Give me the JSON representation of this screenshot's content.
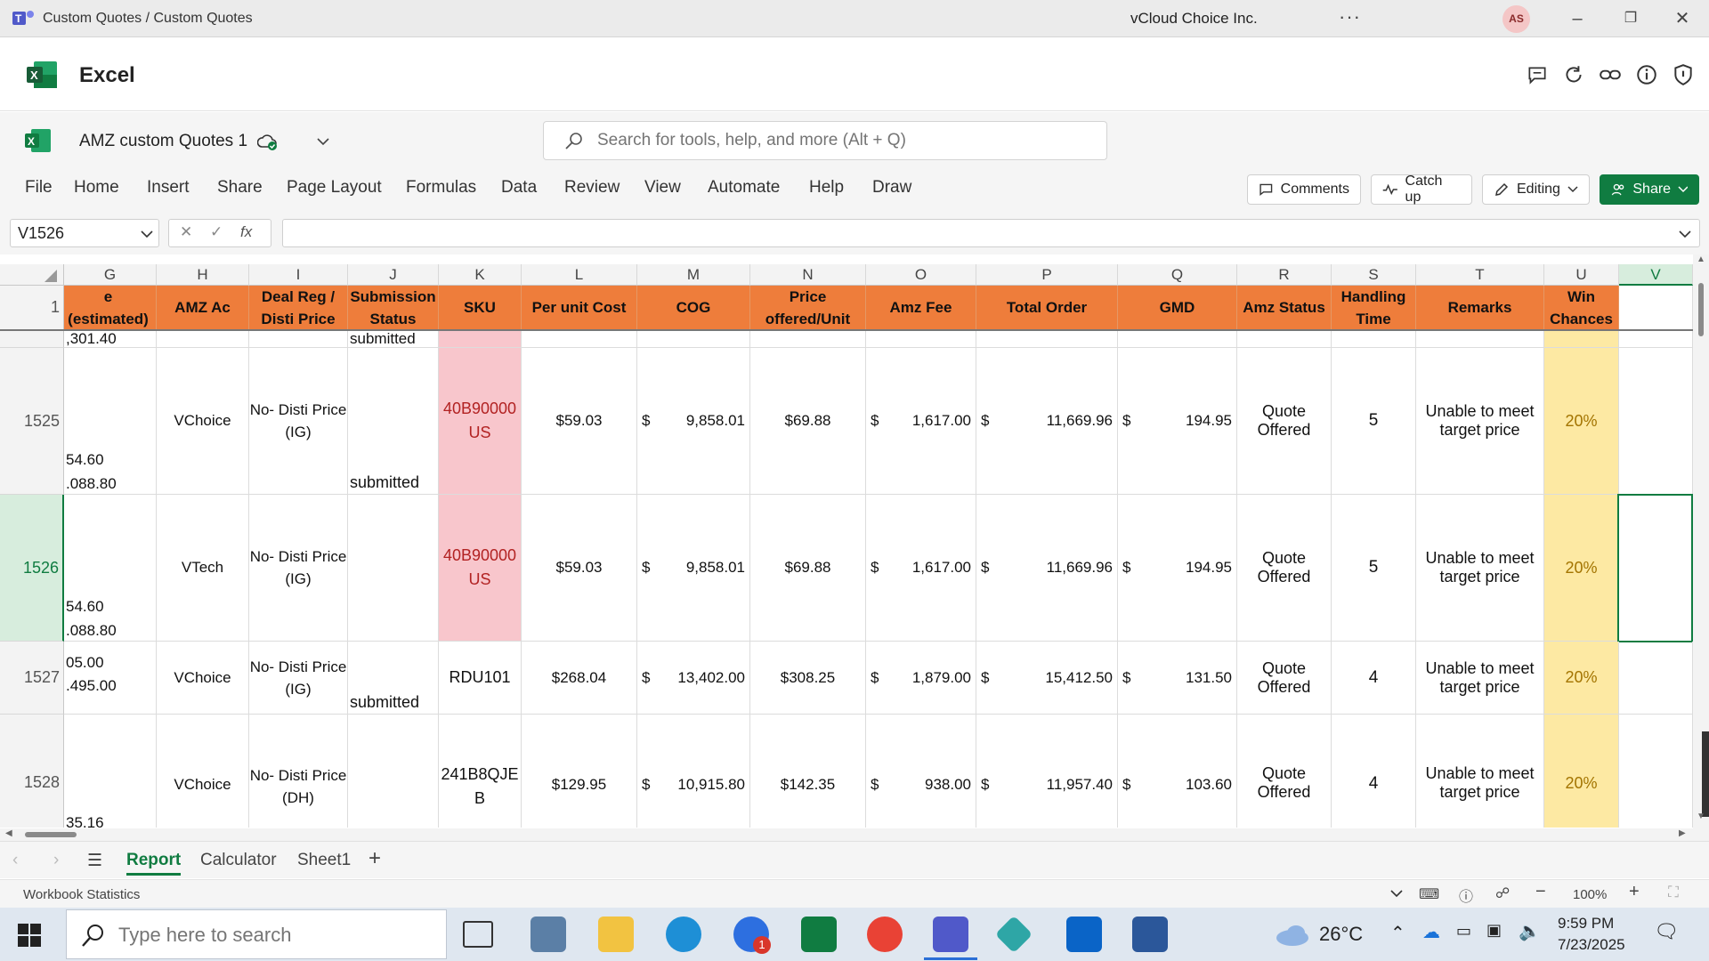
{
  "titlebar": {
    "title": "Custom Quotes / Custom Quotes",
    "more": "···",
    "org": "vCloud Choice Inc.",
    "avatar": "AS"
  },
  "app": {
    "name": "Excel"
  },
  "doc": {
    "name": "AMZ custom Quotes 1"
  },
  "search": {
    "placeholder": "Search for tools, help, and more (Alt + Q)"
  },
  "ribbon": {
    "tabs": [
      "File",
      "Home",
      "Insert",
      "Share",
      "Page Layout",
      "Formulas",
      "Data",
      "Review",
      "View",
      "Automate",
      "Help",
      "Draw"
    ],
    "comments": "Comments",
    "catchup": "Catch up",
    "editing": "Editing",
    "share": "Share"
  },
  "formula": {
    "namebox": "V1526",
    "fx": "fx",
    "value": ""
  },
  "grid": {
    "columns": [
      "G",
      "H",
      "I",
      "J",
      "K",
      "L",
      "M",
      "N",
      "O",
      "P",
      "Q",
      "R",
      "S",
      "T",
      "U",
      "V"
    ],
    "header_row_num": "1",
    "headers": {
      "G": "e (estimated)",
      "H": "AMZ Ac",
      "I": "Deal Reg / Disti Price",
      "J": "Submission Status",
      "K": "SKU",
      "L": "Per unit Cost",
      "M": "COG",
      "N": "Price offered/Unit",
      "O": "Amz Fee",
      "P": "Total Order",
      "Q": "GMD",
      "R": "Amz Status",
      "S": "Handling Time",
      "T": "Remarks",
      "U": "Win Chances",
      "V": ""
    },
    "partial_row": {
      "g": ",301.40",
      "j": "submitted"
    },
    "rows": [
      {
        "num": "1525",
        "g1": "54.60",
        "g2": ".088.80",
        "h": "VChoice",
        "i": "No- Disti Price (IG)",
        "j": "submitted",
        "k": "40B90000 US",
        "l": "$59.03",
        "m": "9,858.01",
        "n": "$69.88",
        "o": "1,617.00",
        "p": "11,669.96",
        "q": "194.95",
        "r": "Quote Offered",
        "s": "5",
        "t": "Unable to meet target price",
        "u": "20%"
      },
      {
        "num": "1526",
        "g1": "54.60",
        "g2": ".088.80",
        "h": "VTech",
        "i": "No- Disti Price (IG)",
        "j": "",
        "k": "40B90000 US",
        "l": "$59.03",
        "m": "9,858.01",
        "n": "$69.88",
        "o": "1,617.00",
        "p": "11,669.96",
        "q": "194.95",
        "r": "Quote Offered",
        "s": "5",
        "t": "Unable to meet target price",
        "u": "20%"
      },
      {
        "num": "1527",
        "g1": "05.00",
        "g2": ".495.00",
        "h": "VChoice",
        "i": "No- Disti Price (IG)",
        "j": "submitted",
        "k": "RDU101",
        "l": "$268.04",
        "m": "13,402.00",
        "n": "$308.25",
        "o": "1,879.00",
        "p": "15,412.50",
        "q": "131.50",
        "r": "Quote Offered",
        "s": "4",
        "t": "Unable to meet target price",
        "u": "20%"
      },
      {
        "num": "1528",
        "g1": "35.16",
        "g2": "",
        "h": "VChoice",
        "i": "No- Disti Price (DH)",
        "j": "",
        "k": "241B8QJE B",
        "l": "$129.95",
        "m": "10,915.80",
        "n": "$142.35",
        "o": "938.00",
        "p": "11,957.40",
        "q": "103.60",
        "r": "Quote Offered",
        "s": "4",
        "t": "Unable to meet target price",
        "u": "20%"
      }
    ],
    "currency": "$"
  },
  "sheets": {
    "tabs": [
      "Report",
      "Calculator",
      "Sheet1"
    ],
    "active": "Report"
  },
  "status": {
    "stats": "Workbook Statistics",
    "zoom": "100%"
  },
  "taskbar": {
    "search_placeholder": "Type here to search",
    "weather": "26°C",
    "time": "9:59 PM",
    "date": "7/23/2025",
    "badge": "1"
  },
  "colors": {
    "header_orange": "#ee7d3b",
    "excel_green": "#107c41",
    "pink": "#f8c6cc",
    "yellow": "#fde9a3"
  }
}
